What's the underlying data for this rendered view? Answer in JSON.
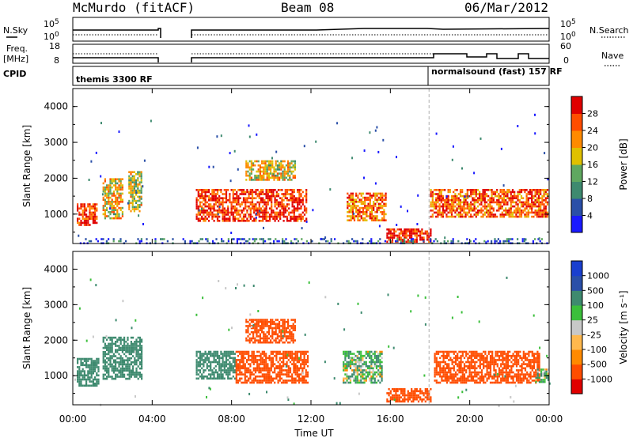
{
  "header": {
    "station": "McMurdo (fitACF)",
    "beam": "Beam 08",
    "date": "06/Mar/2012"
  },
  "side_labels": {
    "nsky": "N.Sky",
    "freq_line1": "Freq.",
    "freq_line2": "[MHz]",
    "cpid": "CPID",
    "nsearch": "N.Search",
    "nave": "Nave"
  },
  "mini_axes": {
    "nsky_ticks": [
      "10^5",
      "10^0"
    ],
    "freq_ticks": [
      "18",
      "8"
    ],
    "nsearch_ticks": [
      "10^5",
      "10^0"
    ],
    "nave_ticks": [
      "60",
      "0"
    ]
  },
  "cpid_labels": {
    "first": "themis 3300 RF",
    "second": "normalsound (fast) 157 RF"
  },
  "colors": {
    "power": [
      "#1a1aff",
      "#2a4fa8",
      "#3e8a6f",
      "#5fa860",
      "#e0c000",
      "#ff8a00",
      "#ff4d00",
      "#e00000"
    ],
    "velocity": [
      "#e00000",
      "#ff4d00",
      "#ff8a00",
      "#ffb84d",
      "#c8c8c8",
      "#3bbf3b",
      "#3e8a6f",
      "#2a4fa8",
      "#1a3fcf"
    ],
    "frame": "#000000"
  },
  "chart_data": [
    {
      "type": "heatmap",
      "name": "power",
      "title": "",
      "ylabel": "Slant Range [km]",
      "xlabel": "",
      "ylim": [
        180,
        4500
      ],
      "yticks": [
        "1000",
        "2000",
        "3000",
        "4000"
      ],
      "xticks": [
        "00:00",
        "04:00",
        "08:00",
        "12:00",
        "16:00",
        "20:00",
        "00:00"
      ],
      "colorbar": {
        "label": "Power [dB]",
        "ticks": [
          "28",
          "24",
          "20",
          "16",
          "12",
          "8",
          "4"
        ],
        "range": [
          0,
          30
        ]
      },
      "echo_regions": [
        {
          "start_hr": 0.2,
          "end_hr": 1.2,
          "range_km": [
            700,
            1300
          ],
          "power_db": 26
        },
        {
          "start_hr": 1.5,
          "end_hr": 2.5,
          "range_km": [
            900,
            2000
          ],
          "power_db": 18
        },
        {
          "start_hr": 2.8,
          "end_hr": 3.5,
          "range_km": [
            1100,
            2200
          ],
          "power_db": 16
        },
        {
          "start_hr": 6.2,
          "end_hr": 11.8,
          "range_km": [
            800,
            1700
          ],
          "power_db": 26
        },
        {
          "start_hr": 8.7,
          "end_hr": 11.2,
          "range_km": [
            1950,
            2500
          ],
          "power_db": 17
        },
        {
          "start_hr": 13.8,
          "end_hr": 15.8,
          "range_km": [
            800,
            1600
          ],
          "power_db": 22
        },
        {
          "start_hr": 15.8,
          "end_hr": 18.0,
          "range_km": [
            200,
            600
          ],
          "power_db": 28
        },
        {
          "start_hr": 18.0,
          "end_hr": 23.9,
          "range_km": [
            900,
            1700
          ],
          "power_db": 24
        },
        {
          "start_hr": 0.0,
          "end_hr": 24.0,
          "range_km": [
            180,
            330
          ],
          "power_db": 6
        }
      ]
    },
    {
      "type": "heatmap",
      "name": "velocity",
      "title": "",
      "ylabel": "Slant Range [km]",
      "xlabel": "Time UT",
      "ylim": [
        180,
        4500
      ],
      "yticks": [
        "1000",
        "2000",
        "3000",
        "4000"
      ],
      "xticks": [
        "00:00",
        "04:00",
        "08:00",
        "12:00",
        "16:00",
        "20:00",
        "00:00"
      ],
      "colorbar": {
        "label": "Velocity [m s⁻¹]",
        "ticks": [
          "1000",
          "500",
          "100",
          "25",
          "-25",
          "-100",
          "-500",
          "-1000"
        ],
        "range": [
          -1000,
          1000
        ]
      },
      "echo_regions": [
        {
          "start_hr": 0.2,
          "end_hr": 1.3,
          "range_km": [
            700,
            1500
          ],
          "velocity_ms": 300
        },
        {
          "start_hr": 1.5,
          "end_hr": 3.5,
          "range_km": [
            900,
            2100
          ],
          "velocity_ms": 300
        },
        {
          "start_hr": 6.2,
          "end_hr": 8.2,
          "range_km": [
            900,
            1700
          ],
          "velocity_ms": 300
        },
        {
          "start_hr": 8.2,
          "end_hr": 11.8,
          "range_km": [
            800,
            1700
          ],
          "velocity_ms": -300
        },
        {
          "start_hr": 8.7,
          "end_hr": 11.2,
          "range_km": [
            1950,
            2600
          ],
          "velocity_ms": -300
        },
        {
          "start_hr": 13.6,
          "end_hr": 15.6,
          "range_km": [
            800,
            1700
          ],
          "velocity_ms": 80
        },
        {
          "start_hr": 15.8,
          "end_hr": 18.0,
          "range_km": [
            250,
            650
          ],
          "velocity_ms": -300
        },
        {
          "start_hr": 18.2,
          "end_hr": 23.5,
          "range_km": [
            800,
            1700
          ],
          "velocity_ms": -300
        },
        {
          "start_hr": 23.3,
          "end_hr": 24.0,
          "range_km": [
            800,
            1200
          ],
          "velocity_ms": 80
        }
      ]
    }
  ]
}
